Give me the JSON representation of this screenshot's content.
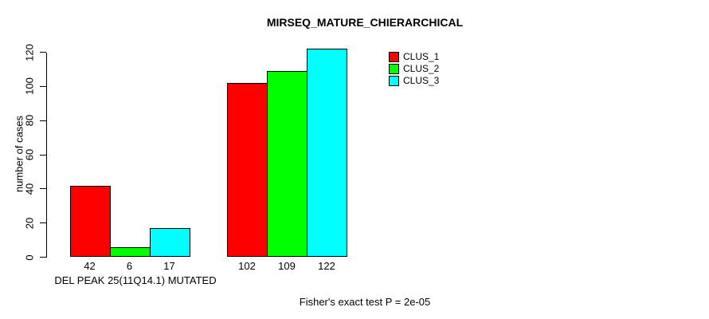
{
  "page": {
    "background": "#ffffff",
    "text_color": "#000000"
  },
  "chart_data": {
    "type": "bar",
    "title": "MIRSEQ_MATURE_CHIERARCHICAL",
    "ylabel": "number of cases",
    "xlabel": "DEL PEAK 25(11Q14.1) MUTATED",
    "footnote": "Fisher's exact test P = 2e-05",
    "ylim": [
      0,
      120
    ],
    "yticks": [
      0,
      20,
      40,
      60,
      80,
      100,
      120
    ],
    "grid": false,
    "legend_position": "top-right-inside",
    "series": [
      {
        "name": "CLUS_1",
        "color": "#ff0000",
        "values": [
          42,
          102
        ]
      },
      {
        "name": "CLUS_2",
        "color": "#00ff00",
        "values": [
          6,
          109
        ]
      },
      {
        "name": "CLUS_3",
        "color": "#00ffff",
        "values": [
          17,
          122
        ]
      }
    ],
    "groups": [
      {
        "label": "DEL PEAK 25(11Q14.1) MUTATED",
        "bar_value_labels": [
          "42",
          "6",
          "17"
        ]
      },
      {
        "label": "",
        "bar_value_labels": [
          "102",
          "109",
          "122"
        ]
      }
    ]
  }
}
